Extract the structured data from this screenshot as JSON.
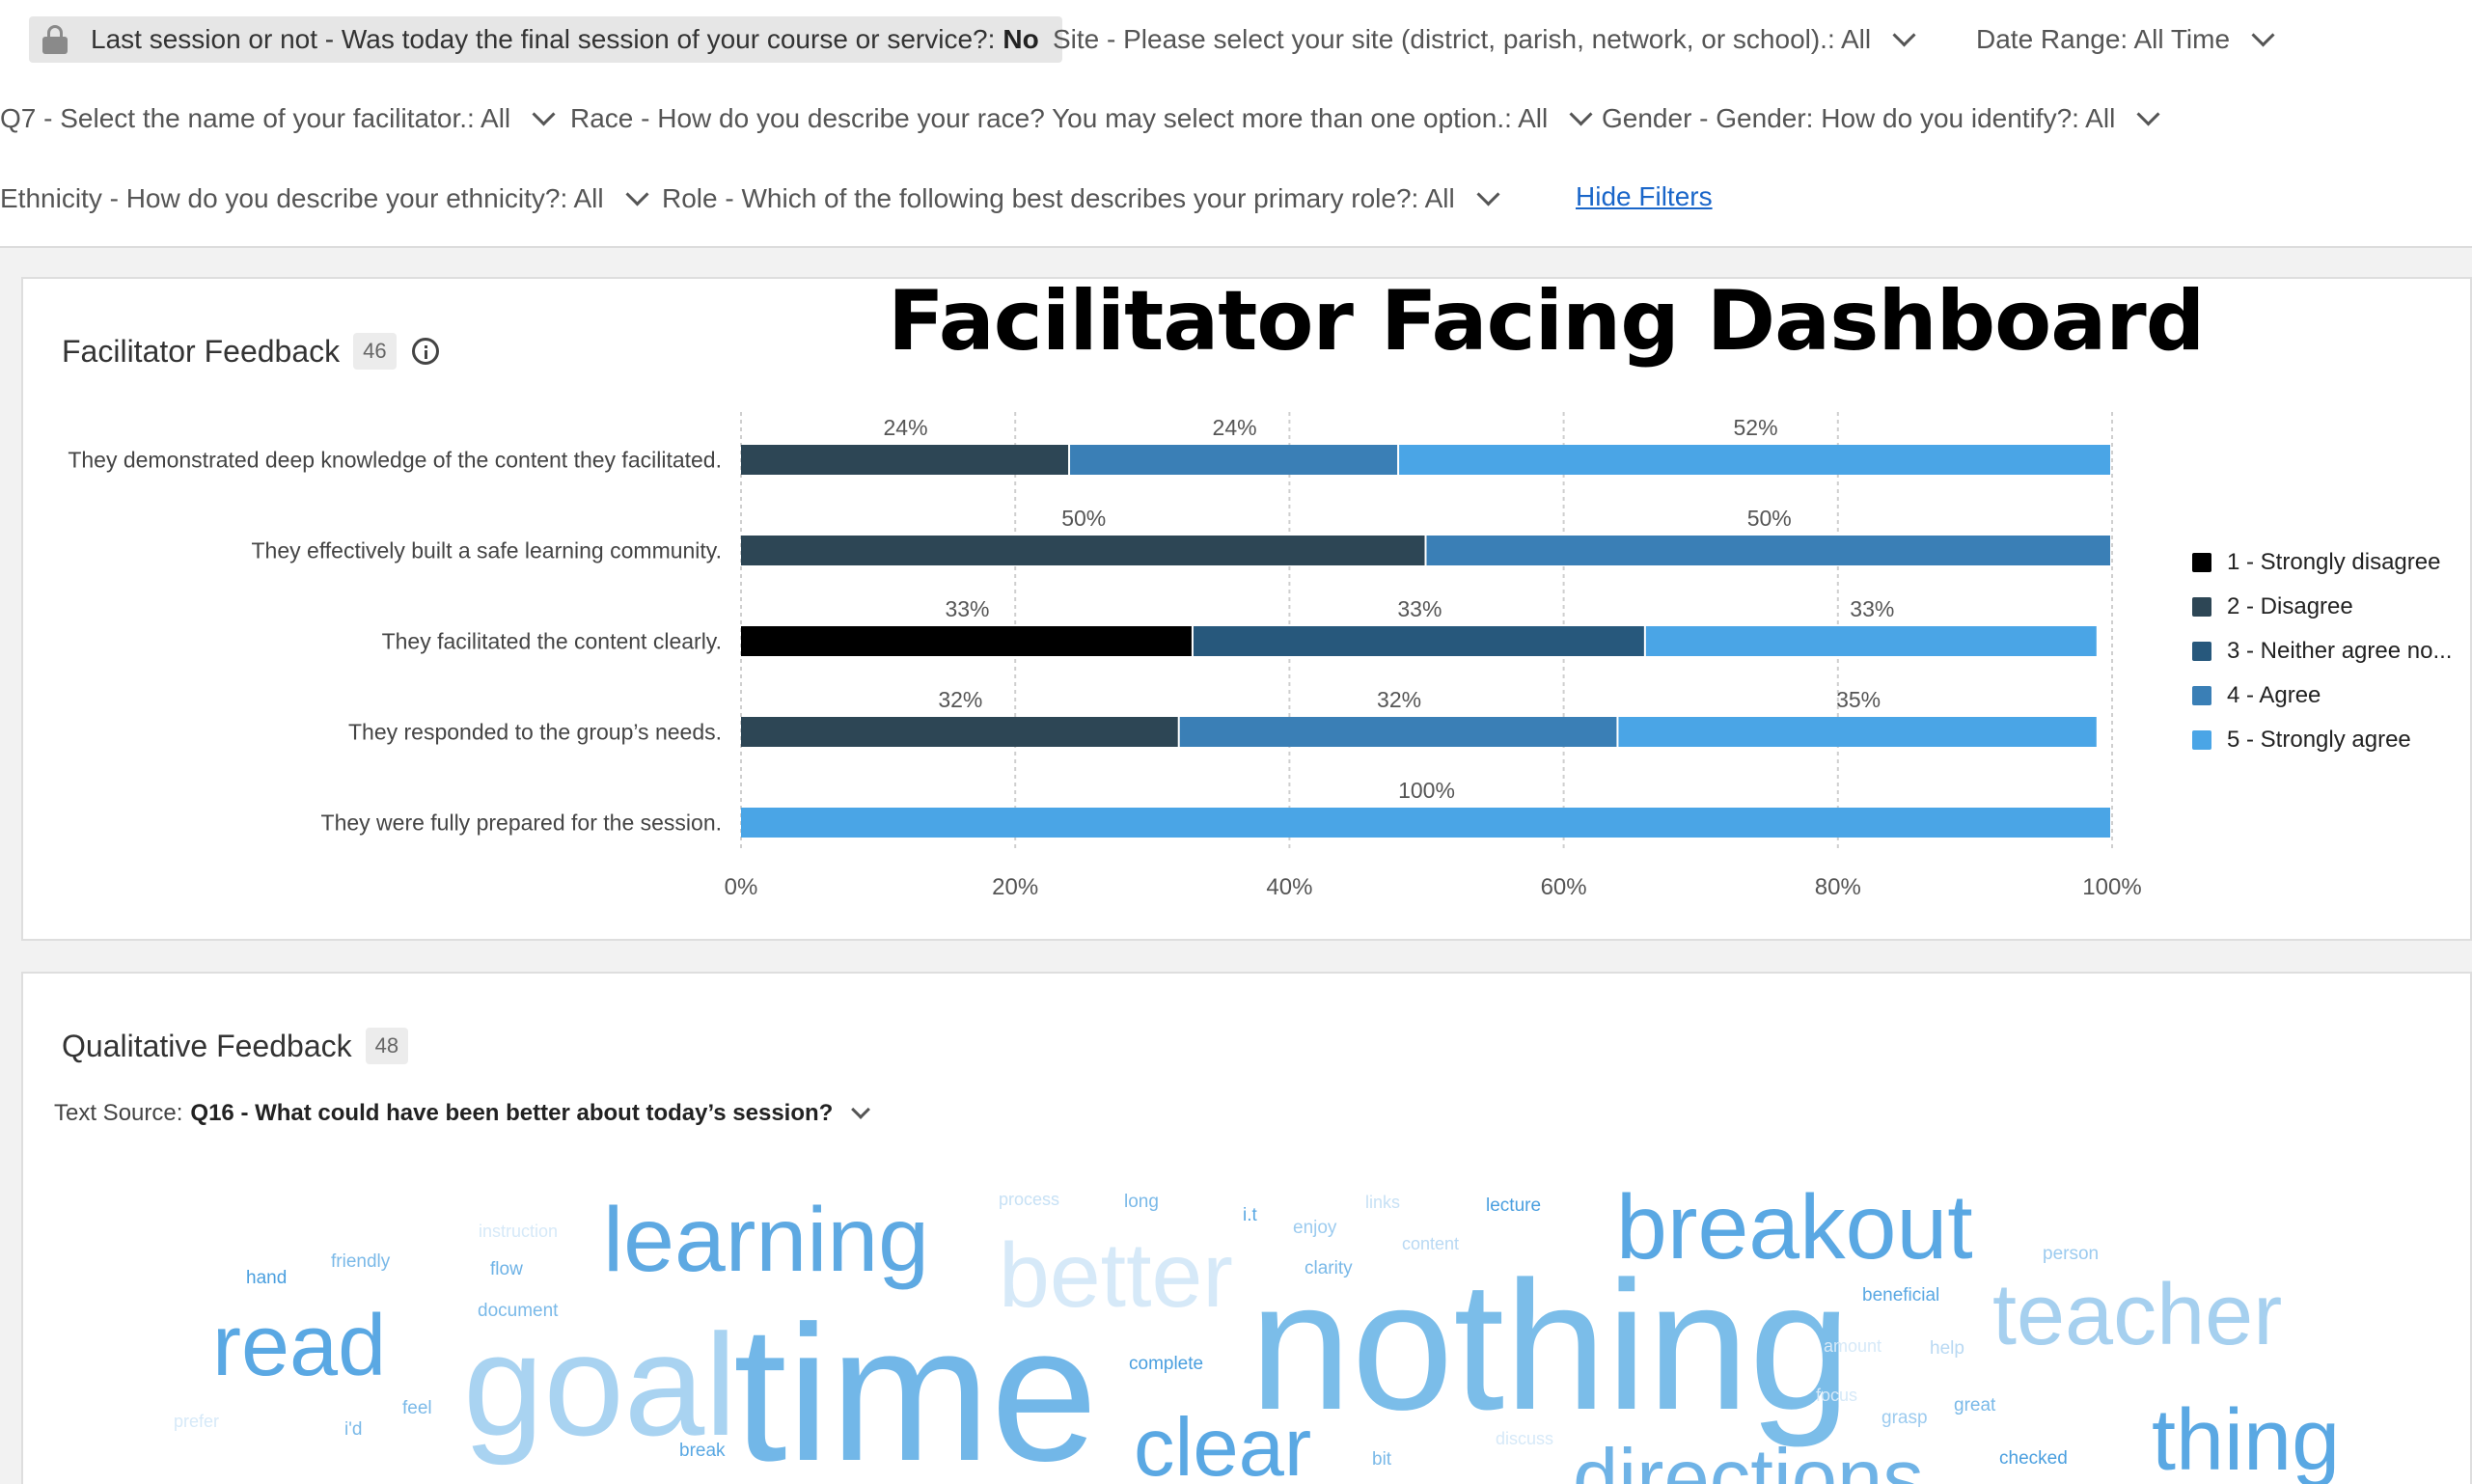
{
  "filters": {
    "last_session": {
      "label": "Last session or not - Was today the final session of your course or service?:",
      "value": "No"
    },
    "site": "Site - Please select your site (district, parish, network, or school).:  All",
    "date_range": "Date Range: All Time",
    "facilitator": "Q7 - Select the name of your facilitator.:  All",
    "race": "Race - How do you describe your race? You may select more than one option.:  All",
    "gender": "Gender - Gender: How do you identify?:  All",
    "ethnicity": "Ethnicity - How do you describe your ethnicity?:  All",
    "role": "Role - Which of the following best describes your primary role?:  All",
    "hide_filters": "Hide Filters"
  },
  "dashboard_title": "Facilitator Facing Dashboard",
  "facilitator_feedback": {
    "title": "Facilitator Feedback",
    "count": "46"
  },
  "chart_data": {
    "type": "bar",
    "orientation": "horizontal-stacked-100",
    "categories": [
      "They demonstrated deep knowledge of the content they facilitated.",
      "They effectively built a safe learning community.",
      "They facilitated the content clearly.",
      "They responded to the group’s needs.",
      "They were fully prepared for the session."
    ],
    "series": [
      {
        "name": "1 - Strongly disagree",
        "color": "#000000",
        "values": [
          0,
          0,
          33,
          0,
          0
        ]
      },
      {
        "name": "2 - Disagree",
        "color": "#2d4655",
        "values": [
          24,
          50,
          0,
          32,
          0
        ]
      },
      {
        "name": "3 - Neither agree no...",
        "color": "#27587c",
        "values": [
          0,
          0,
          33,
          0,
          0
        ]
      },
      {
        "name": "4 - Agree",
        "color": "#3a7fb6",
        "values": [
          24,
          50,
          0,
          32,
          0
        ]
      },
      {
        "name": "5 - Strongly agree",
        "color": "#4aa5e6",
        "values": [
          52,
          0,
          33,
          35,
          100
        ]
      }
    ],
    "xticks": [
      "0%",
      "20%",
      "40%",
      "60%",
      "80%",
      "100%"
    ],
    "xlim": [
      0,
      100
    ],
    "grid": true,
    "legend": "right"
  },
  "qualitative_feedback": {
    "title": "Qualitative Feedback",
    "count": "48",
    "text_source_label": "Text Source:",
    "text_source_value": "Q16 - What could have been better about today’s session?",
    "words": [
      {
        "text": "nothing",
        "color": "#7bbde9"
      },
      {
        "text": "time",
        "color": "#72b7e8"
      },
      {
        "text": "goal",
        "color": "#a9d3f1"
      },
      {
        "text": "breakout",
        "color": "#5aa8e3"
      },
      {
        "text": "learning",
        "color": "#5ea9e2"
      },
      {
        "text": "better",
        "color": "#d6e9f8"
      },
      {
        "text": "teacher",
        "color": "#a6d0ef"
      },
      {
        "text": "read",
        "color": "#5aa8e3"
      },
      {
        "text": "thing",
        "color": "#5aa8e3"
      },
      {
        "text": "clear",
        "color": "#5aa8e3"
      },
      {
        "text": "directions",
        "color": "#6fb3e6"
      },
      {
        "text": "process",
        "color": "#c7e1f5"
      },
      {
        "text": "long",
        "color": "#7ab9e8"
      },
      {
        "text": "i.t",
        "color": "#5aa8e3"
      },
      {
        "text": "links",
        "color": "#c7e1f5"
      },
      {
        "text": "lecture",
        "color": "#4a9fdf"
      },
      {
        "text": "enjoy",
        "color": "#9ccbef"
      },
      {
        "text": "content",
        "color": "#b9d9f3"
      },
      {
        "text": "clarity",
        "color": "#7ab9e8"
      },
      {
        "text": "instruction",
        "color": "#d6e9f8"
      },
      {
        "text": "friendly",
        "color": "#7ab9e8"
      },
      {
        "text": "hand",
        "color": "#4a9fdf"
      },
      {
        "text": "flow",
        "color": "#6db2e6"
      },
      {
        "text": "document",
        "color": "#7ab9e8"
      },
      {
        "text": "person",
        "color": "#9ccbef"
      },
      {
        "text": "beneficial",
        "color": "#5aa8e3"
      },
      {
        "text": "amount",
        "color": "#d6e9f8"
      },
      {
        "text": "help",
        "color": "#b9d9f3"
      },
      {
        "text": "complete",
        "color": "#4a9fdf"
      },
      {
        "text": "focus",
        "color": "#d6e9f8"
      },
      {
        "text": "grasp",
        "color": "#9ccbef"
      },
      {
        "text": "great",
        "color": "#7ab9e8"
      },
      {
        "text": "feel",
        "color": "#7ab9e8"
      },
      {
        "text": "prefer",
        "color": "#d6e9f8"
      },
      {
        "text": "i'd",
        "color": "#7ab9e8"
      },
      {
        "text": "break",
        "color": "#5aa8e3"
      },
      {
        "text": "discuss",
        "color": "#d6e9f8"
      },
      {
        "text": "bit",
        "color": "#7ab9e8"
      },
      {
        "text": "checked",
        "color": "#4a9fdf"
      }
    ]
  }
}
